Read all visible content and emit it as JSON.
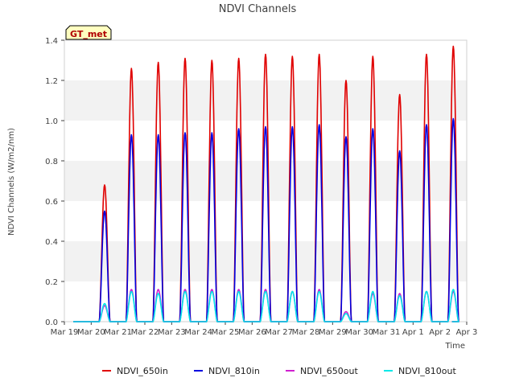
{
  "chart_data": {
    "type": "line",
    "title": "NDVI Channels",
    "xlabel": "Time",
    "ylabel": "NDVI Channels (W/m2/nm)",
    "badge": "GT_met",
    "xlim": [
      0,
      15
    ],
    "ylim": [
      0.0,
      1.4
    ],
    "grid": "horizontal bands",
    "legend_position": "bottom-center",
    "x_ticks": [
      {
        "value": 0,
        "label": "Mar 19"
      },
      {
        "value": 1,
        "label": "Mar 20"
      },
      {
        "value": 2,
        "label": "Mar 21"
      },
      {
        "value": 3,
        "label": "Mar 22"
      },
      {
        "value": 4,
        "label": "Mar 23"
      },
      {
        "value": 5,
        "label": "Mar 24"
      },
      {
        "value": 6,
        "label": "Mar 25"
      },
      {
        "value": 7,
        "label": "Mar 26"
      },
      {
        "value": 8,
        "label": "Mar 27"
      },
      {
        "value": 9,
        "label": "Mar 28"
      },
      {
        "value": 10,
        "label": "Mar 29"
      },
      {
        "value": 11,
        "label": "Mar 30"
      },
      {
        "value": 12,
        "label": "Mar 31"
      },
      {
        "value": 13,
        "label": "Apr 1"
      },
      {
        "value": 14,
        "label": "Apr 2"
      },
      {
        "value": 15,
        "label": "Apr 3"
      }
    ],
    "y_ticks": [
      {
        "value": 0.0,
        "label": "0.0"
      },
      {
        "value": 0.2,
        "label": "0.2"
      },
      {
        "value": 0.4,
        "label": "0.4"
      },
      {
        "value": 0.6,
        "label": "0.6"
      },
      {
        "value": 0.8,
        "label": "0.8"
      },
      {
        "value": 1.0,
        "label": "1.0"
      },
      {
        "value": 1.2,
        "label": "1.2"
      },
      {
        "value": 1.4,
        "label": "1.4"
      }
    ],
    "data_start": 0.33,
    "data_end": 14.45,
    "day_window": [
      0.3,
      0.7
    ],
    "daily_peaks_day_index": [
      1,
      2,
      3,
      4,
      5,
      6,
      7,
      8,
      9,
      10,
      11,
      12,
      13,
      14
    ],
    "series": [
      {
        "name": "NDVI_650in",
        "color": "#e00000",
        "daily_peaks": [
          0.68,
          1.26,
          1.29,
          1.31,
          1.3,
          1.31,
          1.33,
          1.32,
          1.33,
          1.2,
          1.32,
          1.13,
          1.33,
          1.37
        ]
      },
      {
        "name": "NDVI_810in",
        "color": "#0000e0",
        "daily_peaks": [
          0.55,
          0.93,
          0.93,
          0.94,
          0.94,
          0.96,
          0.97,
          0.97,
          0.98,
          0.92,
          0.96,
          0.85,
          0.98,
          1.01
        ]
      },
      {
        "name": "NDVI_650out",
        "color": "#d020d0",
        "daily_peaks": [
          0.08,
          0.16,
          0.16,
          0.16,
          0.16,
          0.16,
          0.16,
          0.15,
          0.16,
          0.05,
          0.14,
          0.14,
          0.15,
          0.15
        ]
      },
      {
        "name": "NDVI_810out",
        "color": "#00e8e8",
        "daily_peaks": [
          0.09,
          0.15,
          0.14,
          0.15,
          0.15,
          0.15,
          0.15,
          0.15,
          0.15,
          0.04,
          0.15,
          0.13,
          0.15,
          0.16
        ]
      }
    ]
  }
}
